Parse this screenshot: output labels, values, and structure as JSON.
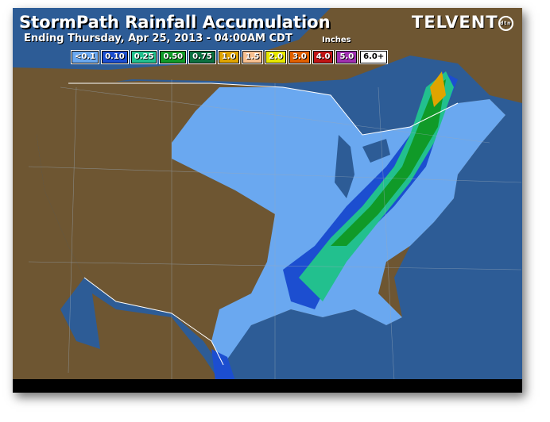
{
  "header": {
    "title": "StormPath Rainfall Accumulation",
    "subtitle": "Ending Thursday, Apr 25, 2013 - 04:00AM CDT",
    "units": "Inches",
    "logo": "TELVENT",
    "logo_badge": "dtn"
  },
  "legend": [
    {
      "label": "<0.1",
      "color": "#6aa8f0"
    },
    {
      "label": "0.10",
      "color": "#1c4ed0"
    },
    {
      "label": "0.25",
      "color": "#22c08e"
    },
    {
      "label": "0.50",
      "color": "#109a28"
    },
    {
      "label": "0.75",
      "color": "#0c7040"
    },
    {
      "label": "1.0",
      "color": "#e0a400"
    },
    {
      "label": "1.5",
      "color": "#f8c090"
    },
    {
      "label": "2.0",
      "color": "#e8e800"
    },
    {
      "label": "3.0",
      "color": "#e06000"
    },
    {
      "label": "4.0",
      "color": "#c01414"
    },
    {
      "label": "5.0",
      "color": "#a030b0"
    },
    {
      "label": "6.0+",
      "color": "#ffffff"
    }
  ],
  "colors": {
    "ocean": "#2d5c96",
    "land_dry": "#6e5632",
    "light_rain": "#6aa8f0"
  }
}
